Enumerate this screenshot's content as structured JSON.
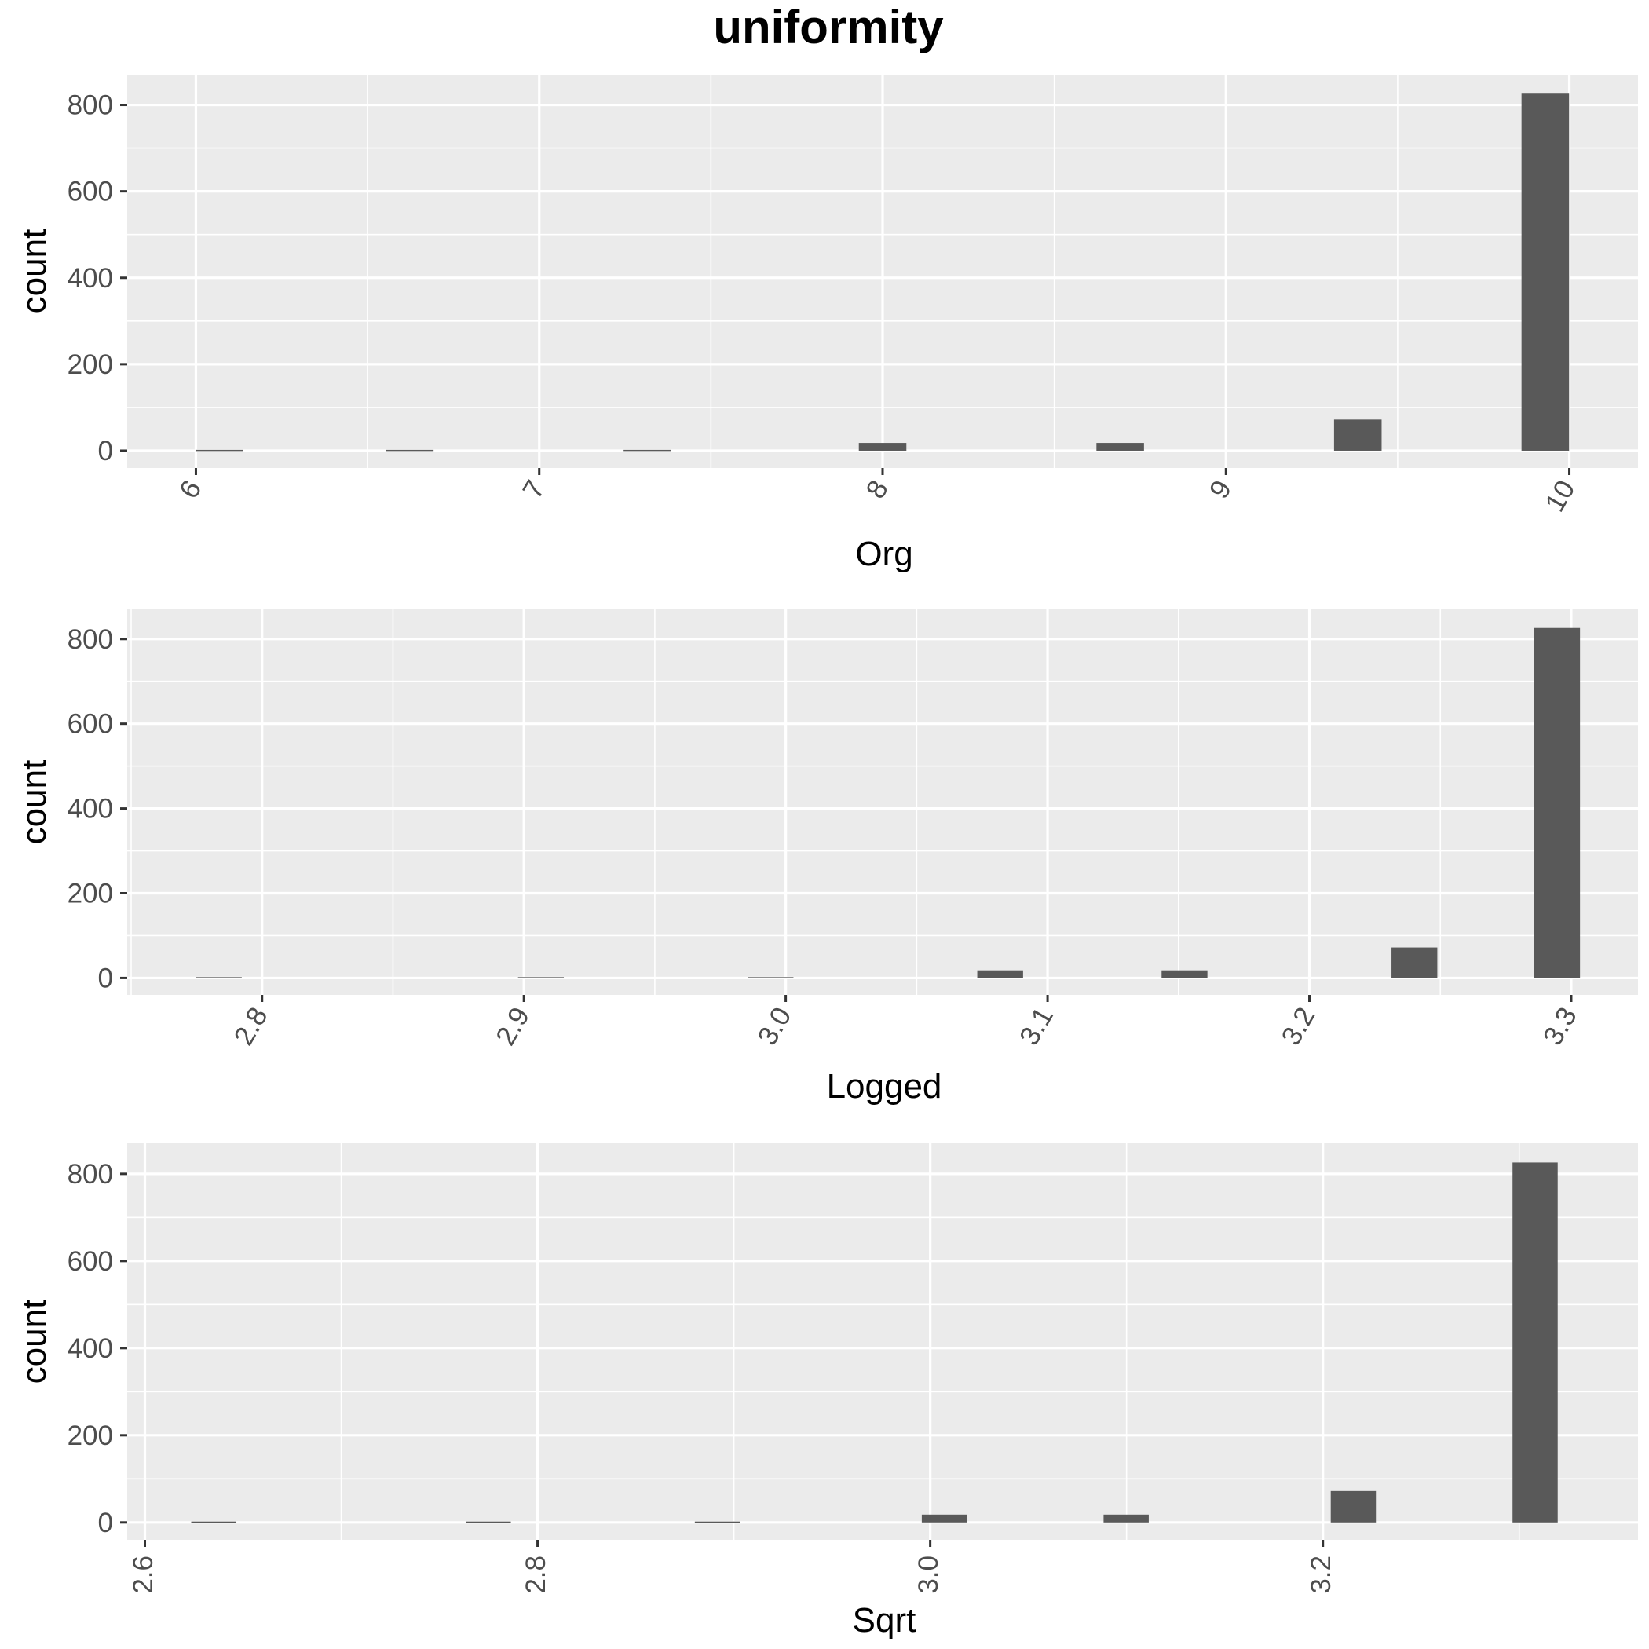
{
  "title": "uniformity",
  "chart_data": [
    {
      "type": "bar",
      "title": "",
      "xlabel": "Org",
      "ylabel": "count",
      "xlim": [
        5.8,
        10.2
      ],
      "ylim": [
        -40,
        870
      ],
      "xticks": [
        "6",
        "7",
        "8",
        "9",
        "10"
      ],
      "xtick_values": [
        6,
        7,
        8,
        9,
        10
      ],
      "yticks": [
        "0",
        "200",
        "400",
        "600",
        "800"
      ],
      "ytick_values": [
        0,
        200,
        400,
        600,
        800
      ],
      "bin_width": 0.1385,
      "x": [
        6.069,
        6.623,
        7.315,
        8.0,
        8.692,
        9.384,
        9.93
      ],
      "values": [
        2,
        2,
        2,
        18,
        18,
        72,
        826
      ],
      "grid": true,
      "tick_rotation": -60,
      "legend": "none"
    },
    {
      "type": "bar",
      "title": "",
      "xlabel": "Logged",
      "ylabel": "count",
      "xlim": [
        2.7485,
        3.3255
      ],
      "ylim": [
        -40,
        870
      ],
      "xticks": [
        "2.8",
        "2.9",
        "3.0",
        "3.1",
        "3.2",
        "3.3"
      ],
      "xtick_values": [
        2.8,
        2.9,
        3.0,
        3.1,
        3.2,
        3.3
      ],
      "yticks": [
        "0",
        "200",
        "400",
        "600",
        "800"
      ],
      "ytick_values": [
        0,
        200,
        400,
        600,
        800
      ],
      "bin_width": 0.0175,
      "x": [
        2.7835,
        2.9065,
        2.9942,
        3.0819,
        3.1523,
        3.2401,
        3.2946
      ],
      "values": [
        2,
        2,
        2,
        18,
        18,
        72,
        826
      ],
      "grid": true,
      "tick_rotation": -60,
      "legend": "none"
    },
    {
      "type": "bar",
      "title": "",
      "xlabel": "Sqrt",
      "ylabel": "count",
      "xlim": [
        2.591,
        3.3605
      ],
      "ylim": [
        -40,
        870
      ],
      "xticks": [
        "2.6",
        "2.8",
        "3.0",
        "3.2"
      ],
      "xtick_values": [
        2.6,
        2.8,
        3.0,
        3.2
      ],
      "yticks": [
        "0",
        "200",
        "400",
        "600",
        "800"
      ],
      "ytick_values": [
        0,
        200,
        400,
        600,
        800
      ],
      "bin_width": 0.023,
      "x": [
        2.6351,
        2.7749,
        2.8916,
        3.0072,
        3.0998,
        3.2155,
        3.3081
      ],
      "values": [
        2,
        2,
        2,
        18,
        18,
        72,
        826
      ],
      "grid": true,
      "tick_rotation": -90,
      "legend": "none"
    }
  ]
}
